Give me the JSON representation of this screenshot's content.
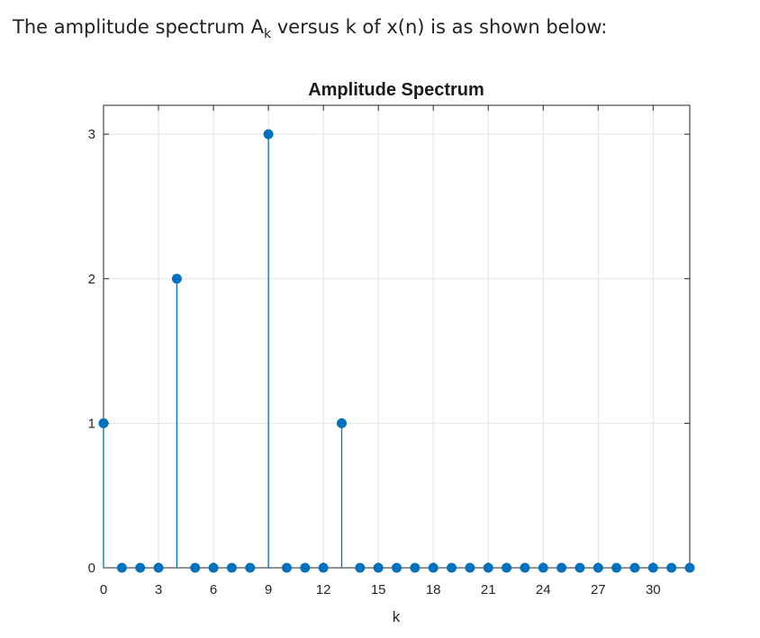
{
  "intro": {
    "before": "The amplitude spectrum A",
    "sub": "k",
    "after": " versus k of x(n) is as shown below:"
  },
  "colors": {
    "stem": "#0072BD",
    "grid": "#e3e3e3",
    "axis": "#262626"
  },
  "chart_data": {
    "type": "stem",
    "title": "Amplitude Spectrum",
    "xlabel": "k",
    "ylabel": "",
    "xlim": [
      0,
      32
    ],
    "ylim": [
      0,
      3.2
    ],
    "xticks": [
      "0",
      "3",
      "6",
      "9",
      "12",
      "15",
      "18",
      "21",
      "24",
      "27",
      "30"
    ],
    "yticks": [
      "0",
      "1",
      "2",
      "3"
    ],
    "grid": true,
    "x": [
      0,
      1,
      2,
      3,
      4,
      5,
      6,
      7,
      8,
      9,
      10,
      11,
      12,
      13,
      14,
      15,
      16,
      17,
      18,
      19,
      20,
      21,
      22,
      23,
      24,
      25,
      26,
      27,
      28,
      29,
      30,
      31,
      32
    ],
    "values": [
      1,
      0,
      0,
      0,
      2,
      0,
      0,
      0,
      0,
      3,
      0,
      0,
      0,
      1,
      0,
      0,
      0,
      0,
      0,
      0,
      0,
      0,
      0,
      0,
      0,
      0,
      0,
      0,
      0,
      0,
      0,
      0,
      0
    ]
  }
}
